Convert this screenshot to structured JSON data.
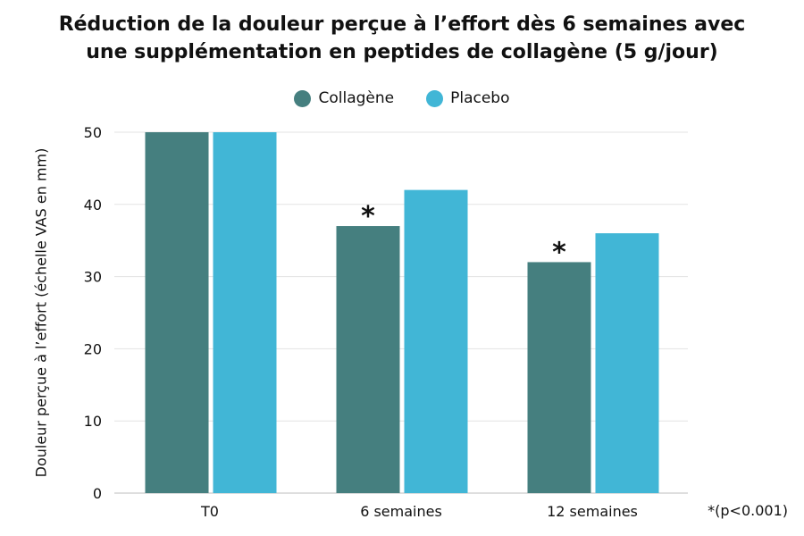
{
  "title_lines": [
    "Réduction de la douleur perçue à l’effort dès 6 semaines avec",
    "une supplémentation en peptides de collagène (5 g/jour)"
  ],
  "footnote": "*(p<0.001)",
  "colors": {
    "collagene": "#457f7f",
    "placebo": "#41b6d6",
    "grid": "#e3e3e3",
    "axis": "#bdbdbd"
  },
  "chart_data": {
    "type": "bar",
    "title": "Réduction de la douleur perçue à l’effort dès 6 semaines avec une supplémentation en peptides de collagène (5 g/jour)",
    "xlabel": "",
    "ylabel": "Douleur perçue à l’effort (échelle VAS en mm)",
    "categories": [
      "T0",
      "6 semaines",
      "12 semaines"
    ],
    "series": [
      {
        "name": "Collagène",
        "values": [
          50,
          37,
          32
        ],
        "significance": [
          "",
          "*",
          "*"
        ]
      },
      {
        "name": "Placebo",
        "values": [
          50,
          42,
          36
        ]
      }
    ],
    "ylim": [
      0,
      50
    ],
    "yticks": [
      0,
      10,
      20,
      30,
      40,
      50
    ],
    "grid": true,
    "legend_position": "top-center",
    "note": "*(p<0.001)"
  }
}
